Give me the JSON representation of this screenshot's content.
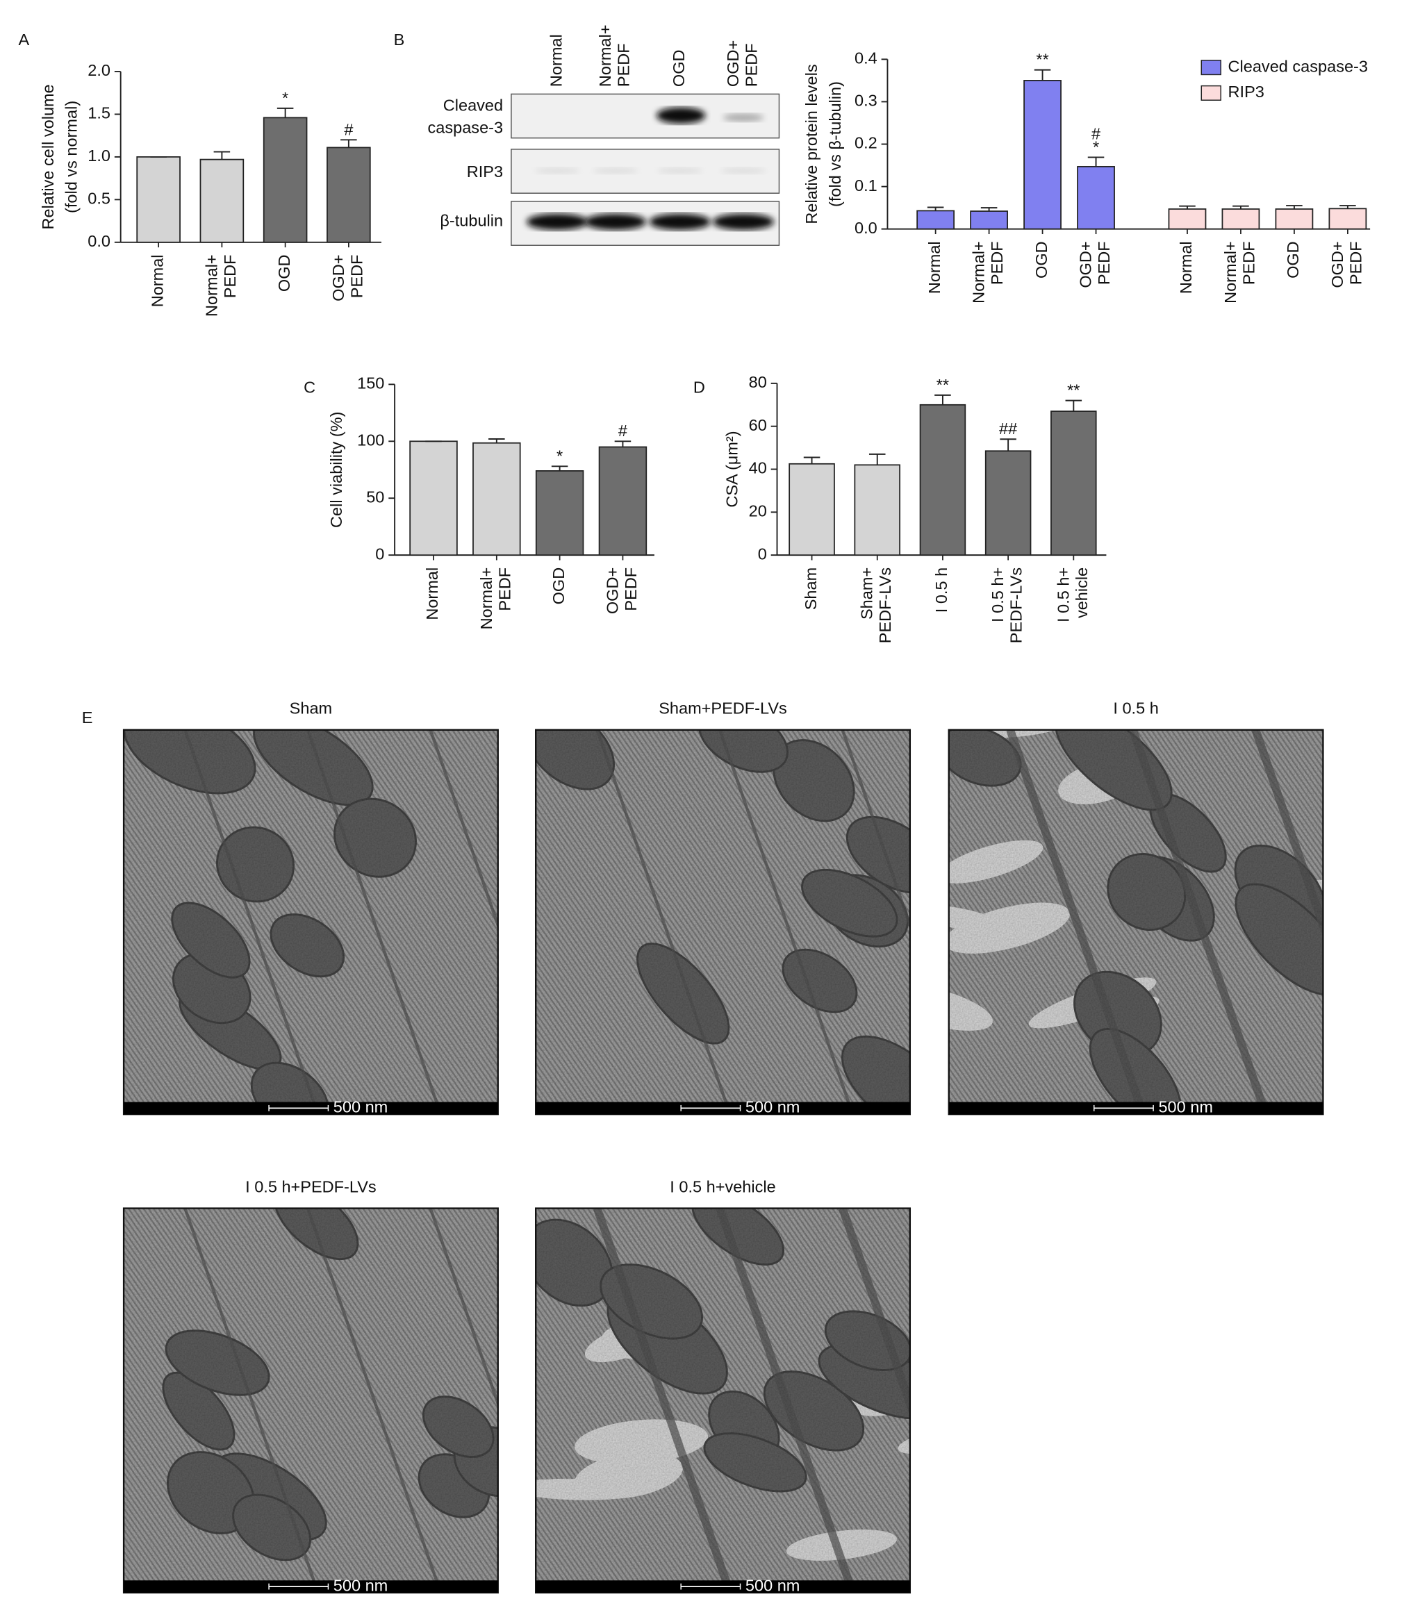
{
  "chart_data": [
    {
      "type": "bar",
      "panel": "A",
      "ylabel": [
        "Relative cell volume",
        "(fold vs normal)"
      ],
      "categories": [
        [
          "Normal"
        ],
        [
          "Normal+",
          "PEDF"
        ],
        [
          "OGD"
        ],
        [
          "OGD+",
          "PEDF"
        ]
      ],
      "ylim": [
        0,
        2
      ],
      "yticks": [
        {
          "value": 0,
          "label": "0.0"
        },
        0.5,
        {
          "value": 1,
          "label": "1.0"
        },
        1.5,
        {
          "value": 2,
          "label": "2.0"
        }
      ],
      "series": [
        {
          "colors": [
            "#d4d4d4",
            "#d4d4d4",
            "#6e6e6e",
            "#6e6e6e"
          ],
          "values": [
            1,
            0.97,
            1.46,
            1.11
          ],
          "errors": [
            0,
            0.09,
            0.11,
            0.09
          ],
          "annotations": [
            null,
            null,
            [
              "*"
            ],
            [
              "#"
            ]
          ]
        }
      ]
    },
    {
      "type": "bar",
      "ylabel": [
        "Relative protein levels",
        "(fold vs β-tubulin)"
      ],
      "categories": [
        [
          "Normal"
        ],
        [
          "Normal+",
          "PEDF"
        ],
        [
          "OGD"
        ],
        [
          "OGD+",
          "PEDF"
        ]
      ],
      "ylim": [
        0,
        0.4
      ],
      "yticks": [
        {
          "value": 0,
          "label": "0.0"
        },
        0.1,
        0.2,
        0.3,
        0.4
      ],
      "legend": "upper right",
      "series": [
        {
          "name": "Cleaved caspase-3",
          "color": "#8080f0",
          "values": [
            0.043,
            0.042,
            0.35,
            0.147
          ],
          "errors": [
            0.008,
            0.008,
            0.025,
            0.022
          ],
          "annotations": [
            null,
            null,
            [
              "**"
            ],
            [
              "#",
              "*"
            ]
          ]
        },
        {
          "name": "RIP3",
          "color": "#fbdcdc",
          "values": [
            0.047,
            0.047,
            0.047,
            0.048
          ],
          "errors": [
            0.007,
            0.007,
            0.008,
            0.007
          ],
          "annotations": [
            null,
            null,
            null,
            null
          ]
        }
      ]
    },
    {
      "type": "bar",
      "panel": "C",
      "ylabel": [
        "Cell viability (%)"
      ],
      "categories": [
        [
          "Normal"
        ],
        [
          "Normal+",
          "PEDF"
        ],
        [
          "OGD"
        ],
        [
          "OGD+",
          "PEDF"
        ]
      ],
      "ylim": [
        0,
        150
      ],
      "yticks": [
        0,
        50,
        100,
        150
      ],
      "series": [
        {
          "colors": [
            "#d4d4d4",
            "#d4d4d4",
            "#6e6e6e",
            "#6e6e6e"
          ],
          "values": [
            100,
            98.5,
            74,
            95
          ],
          "errors": [
            0,
            3.5,
            4,
            5
          ],
          "annotations": [
            null,
            null,
            [
              "*"
            ],
            [
              "#"
            ]
          ]
        }
      ]
    },
    {
      "type": "bar",
      "panel": "D",
      "ylabel": [
        "CSA (μm²)"
      ],
      "categories": [
        [
          "Sham"
        ],
        [
          "Sham+",
          "PEDF-LVs"
        ],
        [
          "I 0.5 h"
        ],
        [
          "I 0.5 h+",
          "PEDF-LVs"
        ],
        [
          "I 0.5 h+",
          "vehicle"
        ]
      ],
      "ylim": [
        0,
        80
      ],
      "yticks": [
        0,
        20,
        40,
        60,
        80
      ],
      "series": [
        {
          "colors": [
            "#d4d4d4",
            "#d4d4d4",
            "#6e6e6e",
            "#6e6e6e",
            "#6e6e6e"
          ],
          "values": [
            42.5,
            42,
            70,
            48.5,
            67
          ],
          "errors": [
            3,
            5,
            4.5,
            5.5,
            5
          ],
          "annotations": [
            null,
            null,
            [
              "**"
            ],
            [
              "##"
            ],
            [
              "**"
            ]
          ]
        }
      ]
    }
  ],
  "blot": {
    "panel": "B",
    "lanes": [
      [
        "Normal"
      ],
      [
        "Normal+",
        "PEDF"
      ],
      [
        "OGD"
      ],
      [
        "OGD+",
        "PEDF"
      ]
    ],
    "rows": [
      [
        "Cleaved",
        "caspase-3"
      ],
      [
        "RIP3"
      ],
      [
        "β-tubulin"
      ]
    ]
  },
  "micrographs": {
    "panel": "E",
    "scale_bar": "500 nm",
    "titles": [
      "Sham",
      "Sham+PEDF-LVs",
      "I 0.5 h",
      "I 0.5 h+PEDF-LVs",
      "I 0.5 h+vehicle"
    ]
  }
}
